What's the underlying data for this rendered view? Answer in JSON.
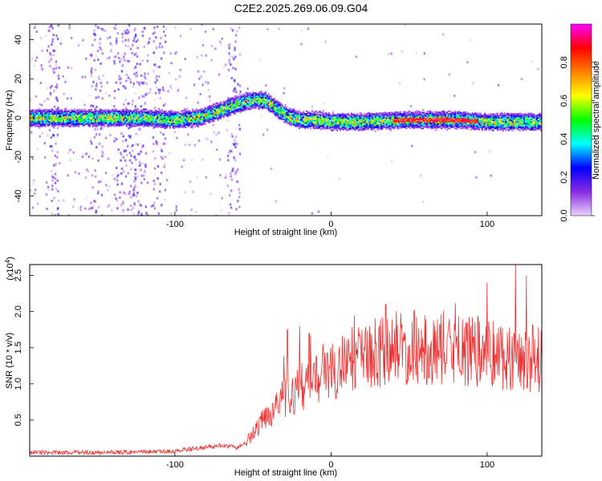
{
  "title": "C2E2.2025.269.06.09.G04",
  "colorbar": {
    "label": "Normalized spectral amplitude",
    "ticks": [
      "0.0",
      "0.2",
      "0.4",
      "0.6",
      "0.8"
    ],
    "stops": [
      "#e8d0f8",
      "#8a2be2",
      "#0000ff",
      "#00ffff",
      "#00ff00",
      "#ffff00",
      "#ff8000",
      "#ff0000",
      "#ff00ff"
    ]
  },
  "chart_data": [
    {
      "type": "heatmap",
      "xlabel": "Height of straight line (km)",
      "ylabel": "Frequency (Hz)",
      "xlim": [
        -193,
        135
      ],
      "ylim": [
        -50,
        48
      ],
      "xticks": [
        -100,
        0,
        100
      ],
      "yticks": [
        -40,
        -20,
        0,
        20,
        40
      ],
      "colorbar_range": [
        0,
        1
      ],
      "ridge": {
        "x": [
          -193,
          -150,
          -120,
          -100,
          -85,
          -70,
          -60,
          -50,
          -42,
          -35,
          -28,
          -20,
          -10,
          0,
          20,
          50,
          80,
          100,
          120,
          135
        ],
        "y": [
          0,
          0,
          0,
          -1,
          0,
          4,
          7,
          9,
          9,
          5,
          1,
          -1,
          -1,
          -2,
          -2,
          -1,
          -1,
          -2,
          -2,
          -2
        ]
      }
    },
    {
      "type": "line",
      "xlabel": "Height of straight line (km)",
      "ylabel": "SNR (10 * v/v)",
      "yscale_label": "(x10",
      "yscale_exp": "4",
      "xlim": [
        -193,
        135
      ],
      "ylim": [
        0.0,
        2.65
      ],
      "xticks": [
        -100,
        0,
        100
      ],
      "yticks": [
        0.5,
        1.0,
        1.5,
        2.0,
        2.5
      ],
      "color": "#ee3030",
      "envelope": {
        "x": [
          -193,
          -150,
          -110,
          -100,
          -90,
          -80,
          -70,
          -60,
          -55,
          -50,
          -45,
          -40,
          -35,
          -30,
          -25,
          -20,
          -10,
          0,
          10,
          20,
          30,
          40,
          50,
          60,
          70,
          80,
          90,
          100,
          110,
          120,
          130,
          135
        ],
        "y": [
          0.05,
          0.05,
          0.06,
          0.07,
          0.1,
          0.12,
          0.15,
          0.12,
          0.18,
          0.3,
          0.45,
          0.6,
          0.7,
          0.8,
          0.85,
          0.95,
          1.05,
          1.15,
          1.3,
          1.4,
          1.45,
          1.5,
          1.5,
          1.5,
          1.5,
          1.45,
          1.45,
          1.45,
          1.4,
          1.35,
          1.35,
          1.35
        ]
      },
      "peaks": {
        "x": [
          -28,
          -20,
          -14,
          -5,
          15,
          35,
          60,
          100,
          118,
          125
        ],
        "y": [
          1.75,
          1.8,
          1.7,
          1.55,
          1.95,
          2.1,
          1.95,
          2.4,
          2.65,
          2.5
        ]
      }
    }
  ]
}
